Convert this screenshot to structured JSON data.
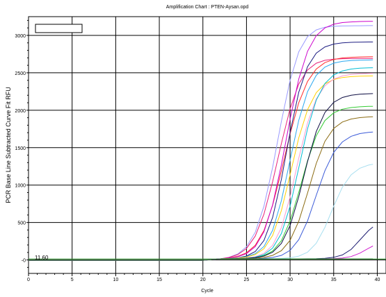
{
  "chart_data": {
    "type": "line",
    "title": "Amplification Chart : PTEN-Aysan.opd",
    "xlabel": "Cycle",
    "ylabel": "PCR Base Line Subtracted Curve Fit RFU",
    "xlim": [
      0,
      41
    ],
    "ylim": [
      -180,
      3250
    ],
    "x_ticks": [
      0,
      5,
      10,
      15,
      20,
      25,
      30,
      35,
      40
    ],
    "y_ticks": [
      0,
      500,
      1000,
      1500,
      2000,
      2500,
      3000
    ],
    "y_tick_labels": [
      "-0",
      "500",
      "1000",
      "1500",
      "2000",
      "2500",
      "3000"
    ],
    "grid": true,
    "legend": "top-left (empty box)",
    "threshold": {
      "value": 11.6,
      "label": "11.60",
      "color": "#2a8a2a"
    },
    "x": [
      0,
      1,
      2,
      3,
      4,
      5,
      6,
      7,
      8,
      9,
      10,
      11,
      12,
      13,
      14,
      15,
      16,
      17,
      18,
      19,
      20,
      21,
      22,
      23,
      24,
      25,
      26,
      27,
      28,
      29,
      30,
      31,
      32,
      33,
      34,
      35,
      36,
      37,
      38,
      39,
      39.5
    ],
    "series": [
      {
        "color": "#9a9aff",
        "values": [
          -5,
          -5,
          -5,
          -5,
          -5,
          -5,
          -5,
          -5,
          -5,
          -5,
          -5,
          -5,
          -5,
          -5,
          -5,
          -5,
          -5,
          -5,
          -5,
          -5,
          -5,
          5,
          15,
          36,
          80,
          176,
          370,
          717,
          1237,
          1852,
          2401,
          2781,
          2984,
          3073,
          3108,
          3121,
          3126,
          3128,
          3129,
          3130,
          3130
        ]
      },
      {
        "color": "#e8207a",
        "values": [
          -5,
          -5,
          -5,
          -5,
          -5,
          -5,
          -5,
          -5,
          -5,
          -5,
          -5,
          -5,
          -5,
          -5,
          -5,
          -5,
          -5,
          -5,
          -5,
          -5,
          -5,
          5,
          15,
          33,
          71,
          153,
          319,
          612,
          1046,
          1556,
          2021,
          2351,
          2537,
          2628,
          2667,
          2682,
          2688,
          2690,
          2691,
          2692,
          2692
        ]
      },
      {
        "color": "#ff2a2a",
        "values": [
          -5,
          -5,
          -5,
          -5,
          -5,
          -5,
          -5,
          -5,
          -5,
          -5,
          -5,
          -5,
          -5,
          -5,
          -5,
          -5,
          -5,
          -5,
          -5,
          -5,
          -5,
          5,
          15,
          27,
          49,
          95,
          195,
          392,
          729,
          1191,
          1684,
          2101,
          2385,
          2550,
          2636,
          2678,
          2698,
          2707,
          2711,
          2713,
          2714
        ]
      },
      {
        "color": "#cc00cc",
        "values": [
          -5,
          -5,
          -5,
          -5,
          -5,
          -5,
          -5,
          -5,
          -5,
          -5,
          -5,
          -5,
          -5,
          -5,
          -5,
          -5,
          -5,
          -5,
          -5,
          -5,
          -5,
          5,
          15,
          25,
          43,
          84,
          178,
          376,
          738,
          1272,
          1883,
          2418,
          2787,
          2996,
          3100,
          3149,
          3171,
          3180,
          3185,
          3187,
          3187
        ]
      },
      {
        "color": "#1a1a80",
        "values": [
          -5,
          -5,
          -5,
          -5,
          -5,
          -5,
          -5,
          -5,
          -5,
          -5,
          -5,
          -5,
          -5,
          -5,
          -5,
          -5,
          -5,
          -5,
          -5,
          -5,
          -5,
          5,
          15,
          20,
          29,
          52,
          112,
          259,
          568,
          1078,
          1704,
          2241,
          2582,
          2762,
          2846,
          2884,
          2900,
          2907,
          2910,
          2912,
          2912
        ]
      },
      {
        "color": "#2aa8f0",
        "values": [
          -5,
          -5,
          -5,
          -5,
          -5,
          -5,
          -5,
          -5,
          -5,
          -5,
          -5,
          -5,
          -5,
          -5,
          -5,
          -5,
          -5,
          -5,
          -5,
          -5,
          -5,
          5,
          15,
          20,
          27,
          43,
          83,
          180,
          396,
          792,
          1335,
          1867,
          2248,
          2466,
          2576,
          2629,
          2653,
          2664,
          2669,
          2671,
          2672
        ]
      },
      {
        "color": "#ffd000",
        "values": [
          -5,
          -5,
          -5,
          -5,
          -5,
          -5,
          -5,
          -5,
          -5,
          -5,
          -5,
          -5,
          -5,
          -5,
          -5,
          -5,
          -5,
          -5,
          -5,
          -5,
          -5,
          5,
          15,
          19,
          25,
          38,
          71,
          150,
          327,
          660,
          1138,
          1632,
          2008,
          2235,
          2353,
          2410,
          2437,
          2449,
          2455,
          2457,
          2458
        ]
      },
      {
        "color": "#ff9ad0",
        "values": [
          -5,
          -5,
          -5,
          -5,
          -5,
          -5,
          -5,
          -5,
          -5,
          -5,
          -5,
          -5,
          -5,
          -5,
          -5,
          -5,
          -5,
          -5,
          -5,
          -5,
          -5,
          5,
          15,
          17,
          20,
          26,
          43,
          87,
          195,
          432,
          843,
          1362,
          1832,
          2150,
          2327,
          2416,
          2458,
          2478,
          2487,
          2491,
          2492
        ]
      },
      {
        "color": "#33cc33",
        "values": [
          -5,
          -5,
          -5,
          -5,
          -5,
          -5,
          -5,
          -5,
          -5,
          -5,
          -5,
          -5,
          -5,
          -5,
          -5,
          -5,
          -5,
          -5,
          -5,
          -5,
          -5,
          5,
          15,
          16,
          18,
          22,
          32,
          58,
          119,
          258,
          520,
          905,
          1325,
          1659,
          1862,
          1965,
          2014,
          2036,
          2046,
          2051,
          2052
        ]
      },
      {
        "color": "#00bcd4",
        "values": [
          -5,
          -5,
          -5,
          -5,
          -5,
          -5,
          -5,
          -5,
          -5,
          -5,
          -5,
          -5,
          -5,
          -5,
          -5,
          -5,
          -5,
          -5,
          -5,
          -5,
          -5,
          5,
          15,
          16,
          18,
          23,
          37,
          71,
          158,
          353,
          718,
          1231,
          1753,
          2135,
          2357,
          2471,
          2525,
          2550,
          2562,
          2567,
          2568
        ]
      },
      {
        "color": "#0a0a40",
        "values": [
          -5,
          -5,
          -5,
          -5,
          -5,
          -5,
          -5,
          -5,
          -5,
          -5,
          -5,
          -5,
          -5,
          -5,
          -5,
          -5,
          -5,
          -5,
          -5,
          -5,
          -5,
          5,
          15,
          16,
          17,
          21,
          30,
          52,
          103,
          221,
          459,
          846,
          1315,
          1715,
          1970,
          2105,
          2170,
          2200,
          2214,
          2220,
          2222
        ]
      },
      {
        "color": "#8a6a10",
        "values": [
          -5,
          -5,
          -5,
          -5,
          -5,
          -5,
          -5,
          -5,
          -5,
          -5,
          -5,
          -5,
          -5,
          -5,
          -5,
          -5,
          -5,
          -5,
          -5,
          -5,
          -5,
          5,
          15,
          16,
          16,
          18,
          23,
          34,
          61,
          124,
          262,
          518,
          894,
          1288,
          1585,
          1757,
          1843,
          1883,
          1901,
          1910,
          1912
        ]
      },
      {
        "color": "#3a5ad8",
        "values": [
          -5,
          -5,
          -5,
          -5,
          -5,
          -5,
          -5,
          -5,
          -5,
          -5,
          -5,
          -5,
          -5,
          -5,
          -5,
          -5,
          -5,
          -5,
          -5,
          -5,
          -5,
          5,
          15,
          15,
          16,
          16,
          17,
          21,
          33,
          61,
          128,
          271,
          522,
          863,
          1193,
          1436,
          1577,
          1652,
          1688,
          1705,
          1709
        ]
      },
      {
        "color": "#a8dff0",
        "values": [
          -5,
          -5,
          -5,
          -5,
          -5,
          -5,
          -5,
          -5,
          -5,
          -5,
          -5,
          -5,
          -5,
          -5,
          -5,
          -5,
          -5,
          -5,
          -5,
          -5,
          -5,
          5,
          15,
          15,
          15,
          15,
          15,
          15,
          17,
          20,
          29,
          51,
          104,
          222,
          436,
          717,
          972,
          1138,
          1225,
          1267,
          1277
        ]
      },
      {
        "color": "#1a1a70",
        "values": [
          -5,
          -5,
          -5,
          -5,
          -5,
          -5,
          -5,
          -5,
          -5,
          -5,
          -5,
          -5,
          -5,
          -5,
          -5,
          -5,
          -5,
          -5,
          -5,
          -5,
          -5,
          5,
          15,
          15,
          15,
          15,
          15,
          15,
          15,
          15,
          15,
          15,
          16,
          17,
          22,
          35,
          67,
          141,
          266,
          392,
          440
        ]
      },
      {
        "color": "#d020d0",
        "values": [
          -5,
          -5,
          -5,
          -5,
          -5,
          -5,
          -5,
          -5,
          -5,
          -5,
          -5,
          -5,
          -5,
          -5,
          -5,
          -5,
          -5,
          -5,
          -5,
          -5,
          -5,
          5,
          15,
          15,
          15,
          15,
          15,
          15,
          15,
          15,
          15,
          15,
          15,
          15,
          16,
          18,
          25,
          45,
          91,
          156,
          186
        ]
      },
      {
        "color": "#2e7d32",
        "values": [
          -5,
          -5,
          -5,
          -5,
          -5,
          -5,
          -5,
          -5,
          -5,
          -5,
          -5,
          -5,
          -5,
          -5,
          -5,
          -5,
          -5,
          -5,
          -5,
          -5,
          -5,
          5,
          15,
          15,
          15,
          15,
          15,
          15,
          15,
          15,
          15,
          15,
          15,
          15,
          15,
          15,
          15,
          15,
          15,
          15,
          15
        ]
      }
    ]
  }
}
